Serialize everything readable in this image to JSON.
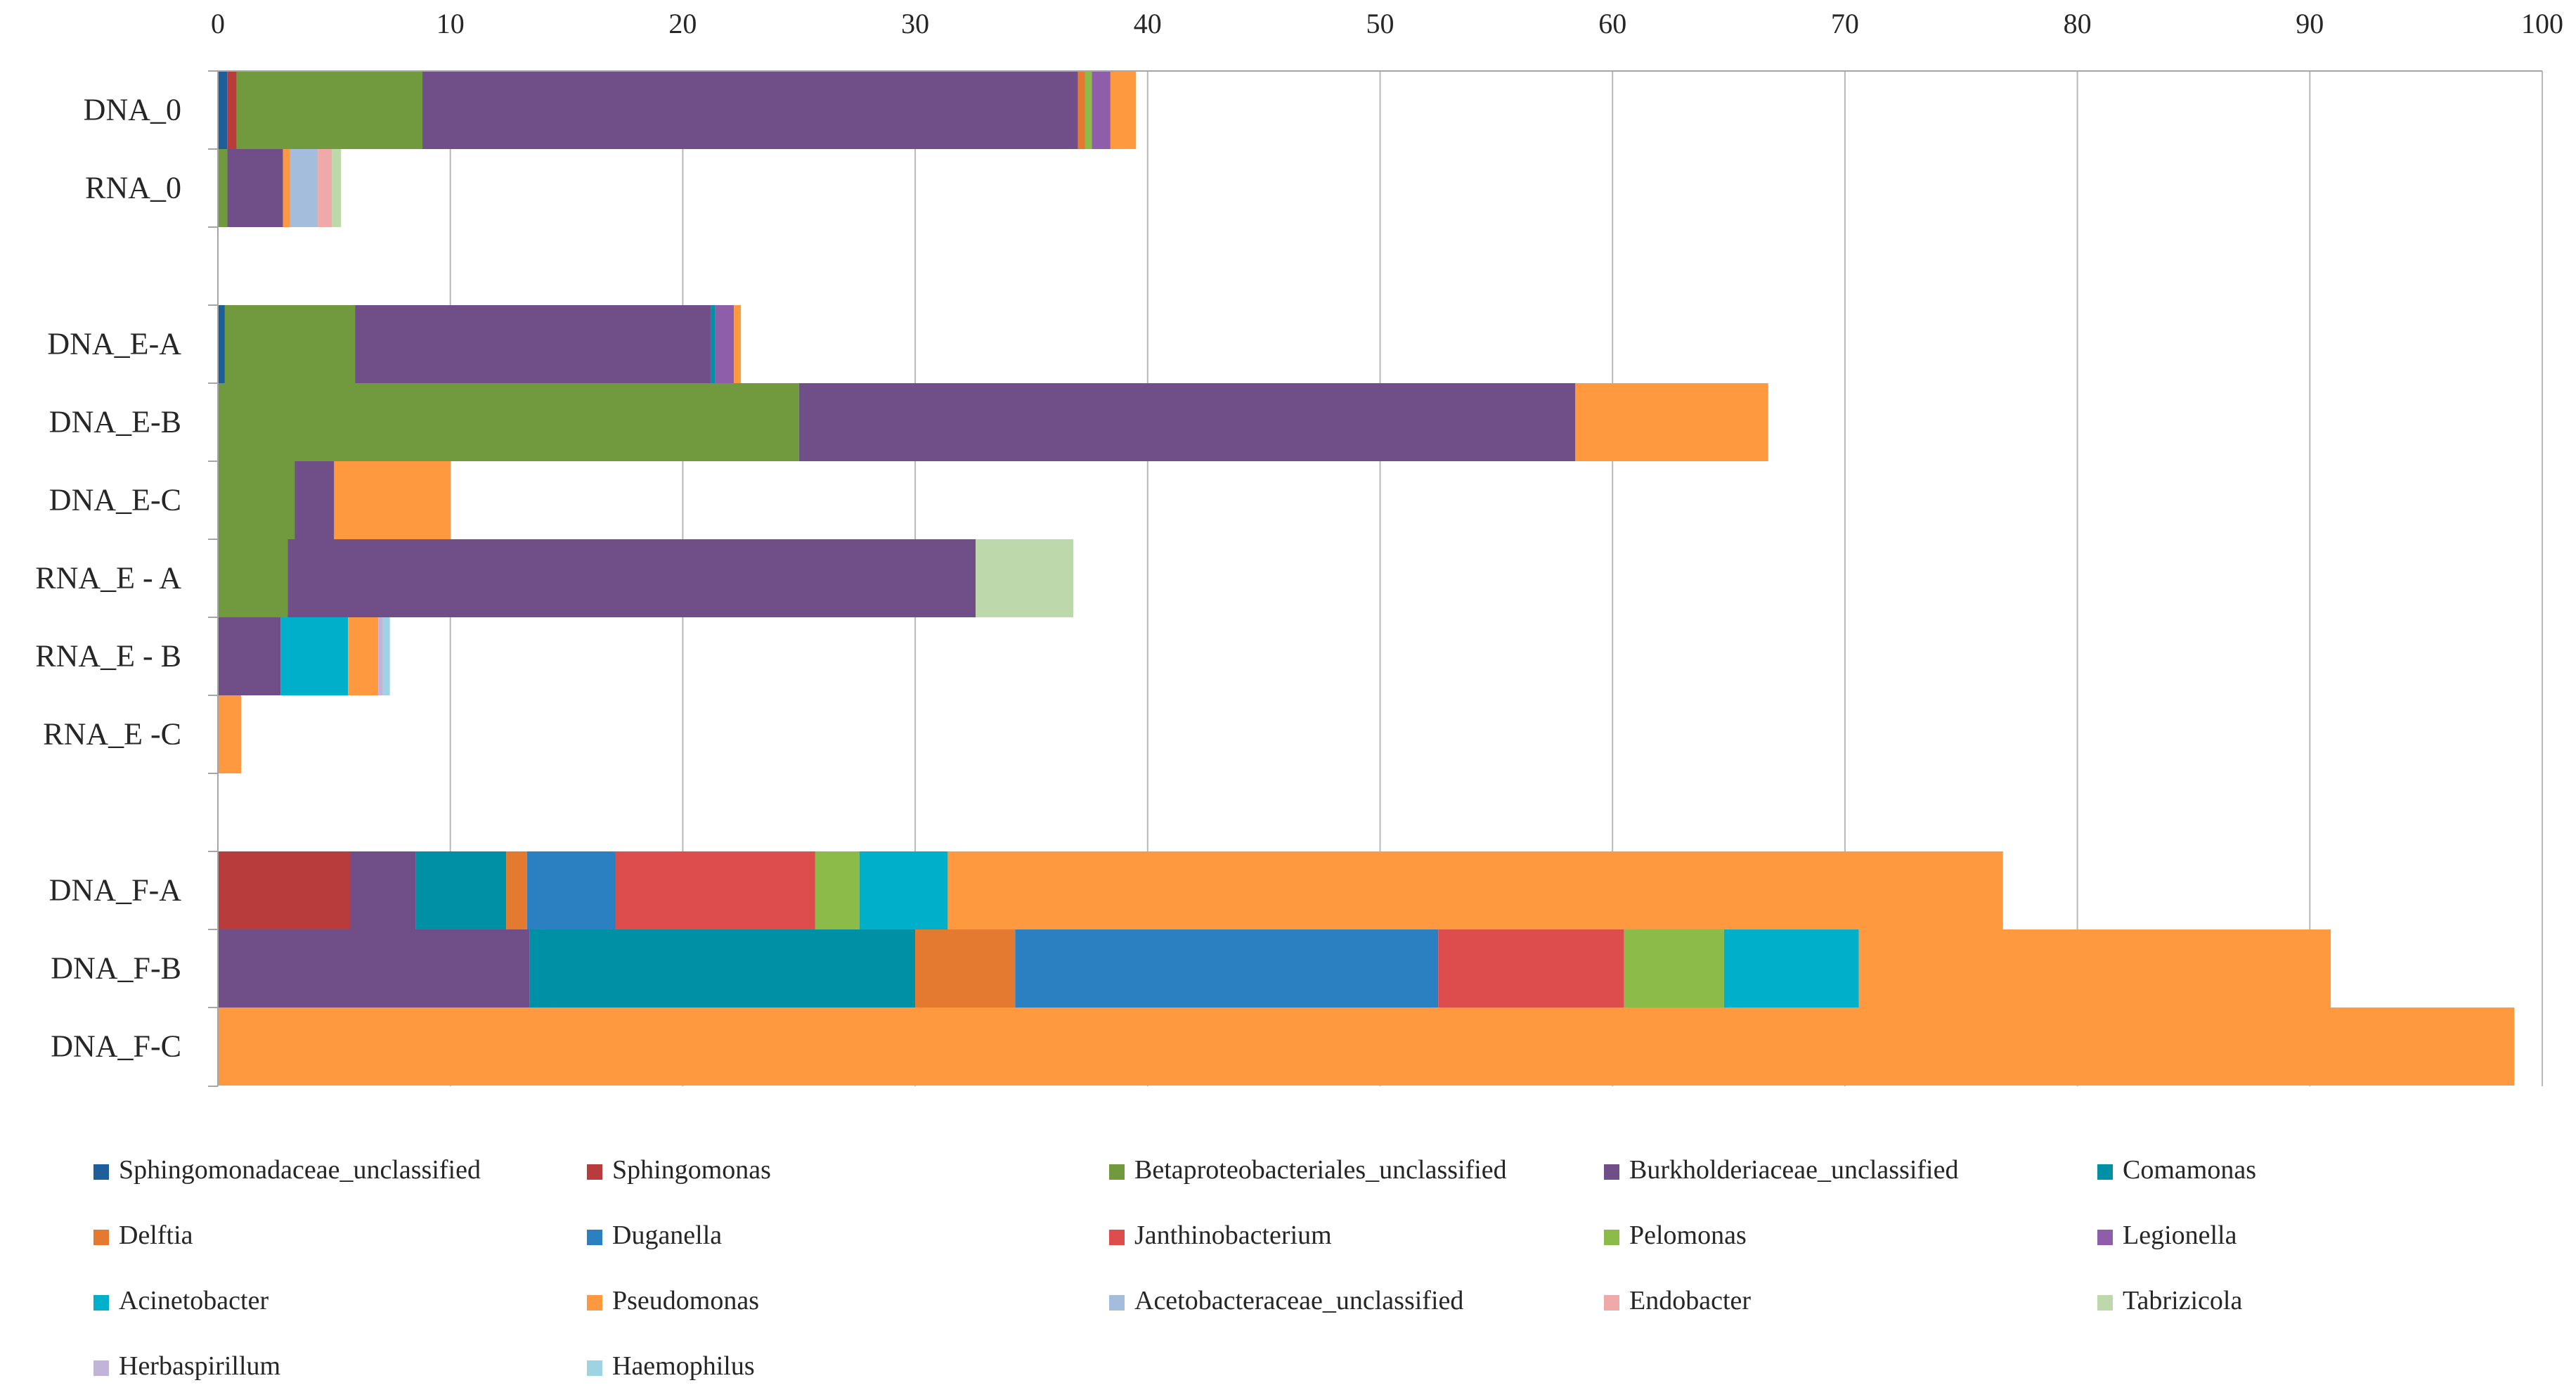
{
  "chart_data": {
    "type": "bar",
    "orientation": "horizontal",
    "stacked": true,
    "title": "",
    "xlabel": "",
    "ylabel": "",
    "xlim": [
      0,
      100
    ],
    "x_ticks": [
      0,
      10,
      20,
      30,
      40,
      50,
      60,
      70,
      80,
      90,
      100
    ],
    "x_axis_position": "top",
    "grid": true,
    "legend_position": "bottom",
    "categories": [
      "DNA_0",
      "RNA_0",
      "",
      "DNA_E-A",
      "DNA_E-B",
      "DNA_E-C",
      "RNA_E - A",
      "RNA_E - B",
      "RNA_E -C",
      "",
      "DNA_F-A",
      "DNA_F-B",
      "DNA_F-C"
    ],
    "series": [
      {
        "name": "Sphingomonadaceae_unclassified",
        "color": "#1F5F99",
        "values": [
          0.4,
          0,
          0,
          0.3,
          0,
          0,
          0,
          0,
          0,
          0,
          0,
          0,
          0
        ]
      },
      {
        "name": "Sphingomonas",
        "color": "#B83C3C",
        "values": [
          0.4,
          0,
          0,
          0,
          0,
          0,
          0,
          0,
          0,
          0,
          5.7,
          0,
          0
        ]
      },
      {
        "name": "Betaproteobacteriales_unclassified",
        "color": "#719A3F",
        "values": [
          8.0,
          0.4,
          0,
          5.6,
          25.0,
          3.3,
          3.0,
          0,
          0,
          0,
          0,
          0,
          0
        ]
      },
      {
        "name": "Burkholderiaceae_unclassified",
        "color": "#704E87",
        "values": [
          28.2,
          2.4,
          0,
          15.3,
          33.4,
          1.7,
          29.6,
          2.7,
          0,
          0,
          2.8,
          13.4,
          0
        ]
      },
      {
        "name": "Comamonas",
        "color": "#0090A6",
        "values": [
          0,
          0,
          0,
          0.2,
          0,
          0,
          0,
          0,
          0,
          0,
          3.9,
          16.6,
          0
        ]
      },
      {
        "name": "Delftia",
        "color": "#E47A30",
        "values": [
          0.3,
          0,
          0,
          0,
          0,
          0,
          0,
          0,
          0,
          0,
          0.9,
          4.3,
          0
        ]
      },
      {
        "name": "Duganella",
        "color": "#2A80C0",
        "values": [
          0,
          0,
          0,
          0,
          0,
          0,
          0,
          0,
          0,
          0,
          3.8,
          18.2,
          0
        ]
      },
      {
        "name": "Janthinobacterium",
        "color": "#DE4D4D",
        "values": [
          0,
          0,
          0,
          0,
          0,
          0,
          0,
          0,
          0,
          0,
          8.6,
          8.0,
          0
        ]
      },
      {
        "name": "Pelomonas",
        "color": "#8CBB4A",
        "values": [
          0.3,
          0,
          0,
          0,
          0,
          0,
          0,
          0,
          0,
          0,
          1.9,
          4.3,
          0
        ]
      },
      {
        "name": "Legionella",
        "color": "#8E5EAA",
        "values": [
          0.8,
          0,
          0,
          0.8,
          0,
          0,
          0,
          0,
          0,
          0,
          0,
          0,
          0
        ]
      },
      {
        "name": "Acinetobacter",
        "color": "#00B0CA",
        "values": [
          0,
          0,
          0,
          0,
          0,
          0,
          0,
          2.9,
          0,
          0,
          3.8,
          5.8,
          0
        ]
      },
      {
        "name": "Pseudomonas",
        "color": "#FF9940",
        "values": [
          1.1,
          0.3,
          0,
          0.3,
          8.3,
          5.0,
          0,
          1.3,
          1.0,
          0,
          45.4,
          20.3,
          98.8
        ]
      },
      {
        "name": "Acetobacteraceae_unclassified",
        "color": "#A5BDDD",
        "values": [
          0,
          1.2,
          0,
          0,
          0,
          0,
          0,
          0,
          0,
          0,
          0,
          0,
          0
        ]
      },
      {
        "name": "Endobacter",
        "color": "#EFA9A9",
        "values": [
          0,
          0.6,
          0,
          0,
          0,
          0,
          0,
          0,
          0,
          0,
          0,
          0,
          0
        ]
      },
      {
        "name": "Tabrizicola",
        "color": "#BDD8AA",
        "values": [
          0,
          0.4,
          0,
          0,
          0,
          0,
          4.2,
          0,
          0,
          0,
          0,
          0,
          0
        ]
      },
      {
        "name": "Herbaspirillum",
        "color": "#C2B3D9",
        "values": [
          0,
          0,
          0,
          0,
          0,
          0,
          0,
          0.2,
          0,
          0,
          0,
          0,
          0
        ]
      },
      {
        "name": "Haemophilus",
        "color": "#9ED3E4",
        "values": [
          0,
          0,
          0,
          0,
          0,
          0,
          0,
          0.3,
          0,
          0,
          0,
          0,
          0
        ]
      }
    ]
  }
}
